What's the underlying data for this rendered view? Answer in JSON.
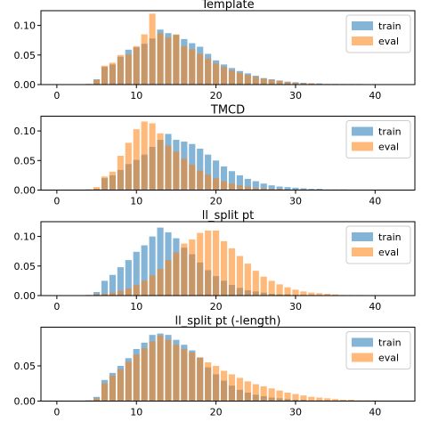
{
  "colors": {
    "train": "#1f77b4",
    "eval": "#ff7f0e"
  },
  "chart_data": [
    {
      "type": "bar",
      "title": "Template",
      "xlabel": "",
      "ylabel": "",
      "xlim": [
        -2,
        45
      ],
      "ylim": [
        0,
        0.125
      ],
      "xticks": [
        0,
        10,
        20,
        30,
        40
      ],
      "yticks": [
        0.0,
        0.05,
        0.1
      ],
      "ytick_labels": [
        "0.00",
        "0.05",
        "0.10"
      ],
      "legend": {
        "placement": "top-right",
        "entries": [
          "train",
          "eval"
        ]
      },
      "x": [
        4,
        5,
        6,
        7,
        8,
        9,
        10,
        11,
        12,
        13,
        14,
        15,
        16,
        17,
        18,
        19,
        20,
        21,
        22,
        23,
        24,
        25,
        26,
        27,
        28,
        29,
        30,
        31,
        32,
        33,
        34,
        35,
        36,
        37,
        38,
        39,
        40,
        41,
        42,
        43
      ],
      "series": [
        {
          "name": "train",
          "values": [
            0.001,
            0.009,
            0.03,
            0.034,
            0.047,
            0.059,
            0.063,
            0.069,
            0.078,
            0.093,
            0.087,
            0.084,
            0.077,
            0.07,
            0.064,
            0.052,
            0.041,
            0.034,
            0.028,
            0.023,
            0.019,
            0.015,
            0.011,
            0.009,
            0.007,
            0.005,
            0.004,
            0.003,
            0.002,
            0.002,
            0.001,
            0.001,
            0.001,
            0.001,
            0.001,
            0.0005,
            0.0005,
            0.0003,
            0.0002,
            0.0001
          ]
        },
        {
          "name": "eval",
          "values": [
            0.001,
            0.008,
            0.032,
            0.037,
            0.05,
            0.051,
            0.065,
            0.085,
            0.12,
            0.087,
            0.08,
            0.085,
            0.065,
            0.06,
            0.052,
            0.044,
            0.036,
            0.03,
            0.024,
            0.02,
            0.016,
            0.013,
            0.01,
            0.008,
            0.006,
            0.004,
            0.003,
            0.002,
            0.002,
            0.001,
            0.001,
            0.001,
            0.0005,
            0.0005,
            0.0003,
            0.0002,
            0.0001,
            0.0001,
            0.0001,
            0.0001
          ]
        }
      ]
    },
    {
      "type": "bar",
      "title": "TMCD",
      "xlabel": "",
      "ylabel": "",
      "xlim": [
        -2,
        45
      ],
      "ylim": [
        0,
        0.125
      ],
      "xticks": [
        0,
        10,
        20,
        30,
        40
      ],
      "yticks": [
        0.0,
        0.05,
        0.1
      ],
      "ytick_labels": [
        "0.00",
        "0.05",
        "0.10"
      ],
      "legend": {
        "placement": "top-right",
        "entries": [
          "train",
          "eval"
        ]
      },
      "x": [
        4,
        5,
        6,
        7,
        8,
        9,
        10,
        11,
        12,
        13,
        14,
        15,
        16,
        17,
        18,
        19,
        20,
        21,
        22,
        23,
        24,
        25,
        26,
        27,
        28,
        29,
        30,
        31,
        32,
        33,
        34,
        35,
        36,
        37,
        38,
        39,
        40,
        41,
        42,
        43
      ],
      "series": [
        {
          "name": "train",
          "values": [
            0.001,
            0.002,
            0.02,
            0.025,
            0.034,
            0.044,
            0.051,
            0.06,
            0.073,
            0.085,
            0.095,
            0.085,
            0.082,
            0.078,
            0.07,
            0.06,
            0.05,
            0.04,
            0.032,
            0.025,
            0.019,
            0.015,
            0.011,
            0.008,
            0.006,
            0.005,
            0.004,
            0.003,
            0.002,
            0.002,
            0.001,
            0.001,
            0.001,
            0.0005,
            0.0005,
            0.0003,
            0.0002,
            0.0001,
            0.0001,
            0.0001
          ]
        },
        {
          "name": "eval",
          "values": [
            0.001,
            0.005,
            0.023,
            0.031,
            0.058,
            0.08,
            0.103,
            0.116,
            0.113,
            0.096,
            0.075,
            0.065,
            0.053,
            0.043,
            0.033,
            0.026,
            0.02,
            0.015,
            0.011,
            0.008,
            0.006,
            0.004,
            0.003,
            0.002,
            0.002,
            0.001,
            0.001,
            0.001,
            0.0005,
            0.0005,
            0.0003,
            0.0002,
            0.0001,
            0.0001,
            0.0001,
            0.0001,
            0.0001,
            0.0001,
            0.0001,
            0.0001
          ]
        }
      ]
    },
    {
      "type": "bar",
      "title": "ll_split pt",
      "xlabel": "",
      "ylabel": "",
      "xlim": [
        -2,
        45
      ],
      "ylim": [
        0,
        0.125
      ],
      "xticks": [
        0,
        10,
        20,
        30,
        40
      ],
      "yticks": [
        0.0,
        0.05,
        0.1
      ],
      "ytick_labels": [
        "0.00",
        "0.05",
        "0.10"
      ],
      "legend": {
        "placement": "top-right",
        "entries": [
          "train",
          "eval"
        ]
      },
      "x": [
        4,
        5,
        6,
        7,
        8,
        9,
        10,
        11,
        12,
        13,
        14,
        15,
        16,
        17,
        18,
        19,
        20,
        21,
        22,
        23,
        24,
        25,
        26,
        27,
        28,
        29,
        30,
        31,
        32,
        33,
        34,
        35,
        36,
        37,
        38,
        39,
        40,
        41,
        42,
        43
      ],
      "series": [
        {
          "name": "train",
          "values": [
            0.001,
            0.006,
            0.025,
            0.035,
            0.048,
            0.06,
            0.074,
            0.085,
            0.1,
            0.115,
            0.107,
            0.097,
            0.081,
            0.07,
            0.056,
            0.043,
            0.033,
            0.025,
            0.018,
            0.013,
            0.009,
            0.007,
            0.005,
            0.003,
            0.002,
            0.002,
            0.001,
            0.001,
            0.001,
            0.0005,
            0.0005,
            0.0003,
            0.0002,
            0.0001,
            0.0001,
            0.0001,
            0.0001,
            0.0001,
            0.0001,
            0.0001
          ]
        },
        {
          "name": "eval",
          "values": [
            0.001,
            0.002,
            0.003,
            0.005,
            0.008,
            0.012,
            0.018,
            0.025,
            0.034,
            0.045,
            0.06,
            0.073,
            0.088,
            0.095,
            0.106,
            0.11,
            0.11,
            0.092,
            0.08,
            0.067,
            0.054,
            0.042,
            0.032,
            0.025,
            0.019,
            0.014,
            0.01,
            0.007,
            0.005,
            0.004,
            0.003,
            0.002,
            0.001,
            0.001,
            0.001,
            0.0005,
            0.0005,
            0.0003,
            0.0002,
            0.0001
          ]
        }
      ]
    },
    {
      "type": "bar",
      "title": "ll_split pt (-length)",
      "xlabel": "",
      "ylabel": "",
      "xlim": [
        -2,
        45
      ],
      "ylim": [
        0,
        0.105
      ],
      "xticks": [
        0,
        10,
        20,
        30,
        40
      ],
      "yticks": [
        0.0,
        0.05
      ],
      "ytick_labels": [
        "0.00",
        "0.05"
      ],
      "legend": {
        "placement": "top-right",
        "entries": [
          "train",
          "eval"
        ]
      },
      "x": [
        4,
        5,
        6,
        7,
        8,
        9,
        10,
        11,
        12,
        13,
        14,
        15,
        16,
        17,
        18,
        19,
        20,
        21,
        22,
        23,
        24,
        25,
        26,
        27,
        28,
        29,
        30,
        31,
        32,
        33,
        34,
        35,
        36,
        37,
        38,
        39,
        40,
        41,
        42,
        43
      ],
      "series": [
        {
          "name": "train",
          "values": [
            0.001,
            0.006,
            0.03,
            0.04,
            0.05,
            0.061,
            0.074,
            0.083,
            0.094,
            0.096,
            0.094,
            0.087,
            0.08,
            0.072,
            0.062,
            0.048,
            0.038,
            0.029,
            0.022,
            0.016,
            0.012,
            0.009,
            0.007,
            0.005,
            0.004,
            0.003,
            0.002,
            0.002,
            0.001,
            0.001,
            0.001,
            0.0005,
            0.0005,
            0.0003,
            0.0002,
            0.0001,
            0.0001,
            0.0001,
            0.0001,
            0.0001
          ]
        },
        {
          "name": "eval",
          "values": [
            0.001,
            0.004,
            0.025,
            0.036,
            0.045,
            0.056,
            0.066,
            0.075,
            0.085,
            0.093,
            0.087,
            0.08,
            0.074,
            0.069,
            0.062,
            0.055,
            0.05,
            0.043,
            0.038,
            0.033,
            0.028,
            0.024,
            0.021,
            0.018,
            0.015,
            0.012,
            0.01,
            0.008,
            0.006,
            0.005,
            0.004,
            0.003,
            0.002,
            0.002,
            0.001,
            0.001,
            0.001,
            0.0005,
            0.0003,
            0.0002
          ]
        }
      ]
    }
  ]
}
